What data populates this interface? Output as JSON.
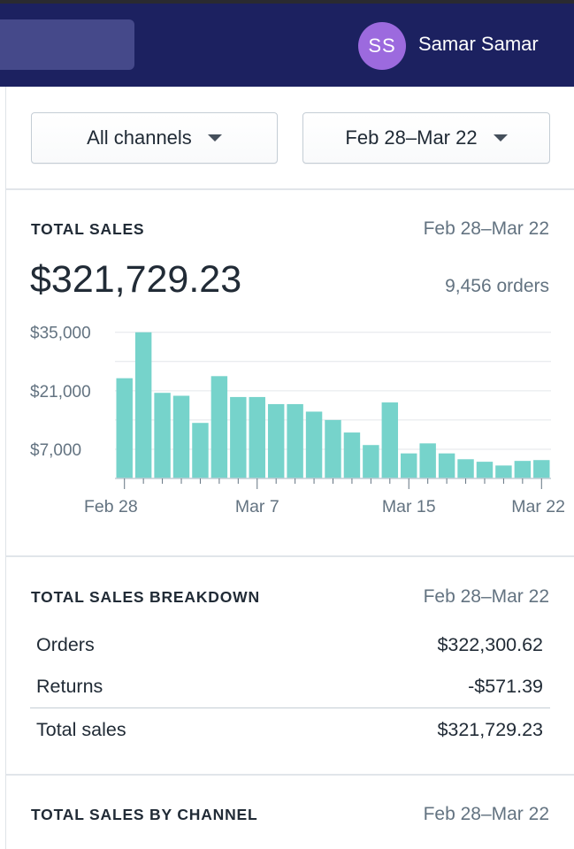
{
  "header": {
    "avatar_initials": "SS",
    "user_name": "Samar Samar",
    "avatar_color": "#9c6ade",
    "bar_color": "#1c2160"
  },
  "filters": {
    "channel_label": "All channels",
    "date_label": "Feb 28–Mar 22"
  },
  "total_sales": {
    "title": "TOTAL SALES",
    "date_range": "Feb 28–Mar 22",
    "amount": "$321,729.23",
    "orders": "9,456 orders"
  },
  "chart_data": {
    "type": "bar",
    "title": "",
    "xlabel": "",
    "ylabel": "",
    "ylim": [
      0,
      36000
    ],
    "y_ticks": [
      7000,
      14000,
      21000,
      28000,
      35000
    ],
    "y_tick_labels": [
      "$7,000",
      "$21,000",
      "$35,000"
    ],
    "labeled_y_ticks": [
      7000,
      21000,
      35000
    ],
    "x_tick_labels": [
      "Feb 28",
      "Mar 7",
      "Mar 15",
      "Mar 22"
    ],
    "x_tick_positions": [
      0,
      7,
      15,
      22
    ],
    "bar_color": "#76d3cb",
    "grid": true,
    "categories": [
      "Feb 28",
      "Mar 1",
      "Mar 2",
      "Mar 3",
      "Mar 4",
      "Mar 5",
      "Mar 6",
      "Mar 7",
      "Mar 8",
      "Mar 9",
      "Mar 10",
      "Mar 11",
      "Mar 12",
      "Mar 13",
      "Mar 14",
      "Mar 15",
      "Mar 16",
      "Mar 17",
      "Mar 18",
      "Mar 19",
      "Mar 20",
      "Mar 21",
      "Mar 22"
    ],
    "values": [
      24000,
      35000,
      20500,
      19800,
      13300,
      24500,
      19500,
      19500,
      17800,
      17800,
      16000,
      14000,
      11000,
      8000,
      18200,
      6000,
      8400,
      6000,
      4600,
      4000,
      3100,
      4200,
      4400
    ]
  },
  "breakdown": {
    "title": "TOTAL SALES BREAKDOWN",
    "date_range": "Feb 28–Mar 22",
    "rows": [
      {
        "label": "Orders",
        "value": "$322,300.62"
      },
      {
        "label": "Returns",
        "value": "-$571.39"
      },
      {
        "label": "Total sales",
        "value": "$321,729.23"
      }
    ]
  },
  "by_channel": {
    "title": "TOTAL SALES BY CHANNEL",
    "date_range": "Feb 28–Mar 22"
  }
}
